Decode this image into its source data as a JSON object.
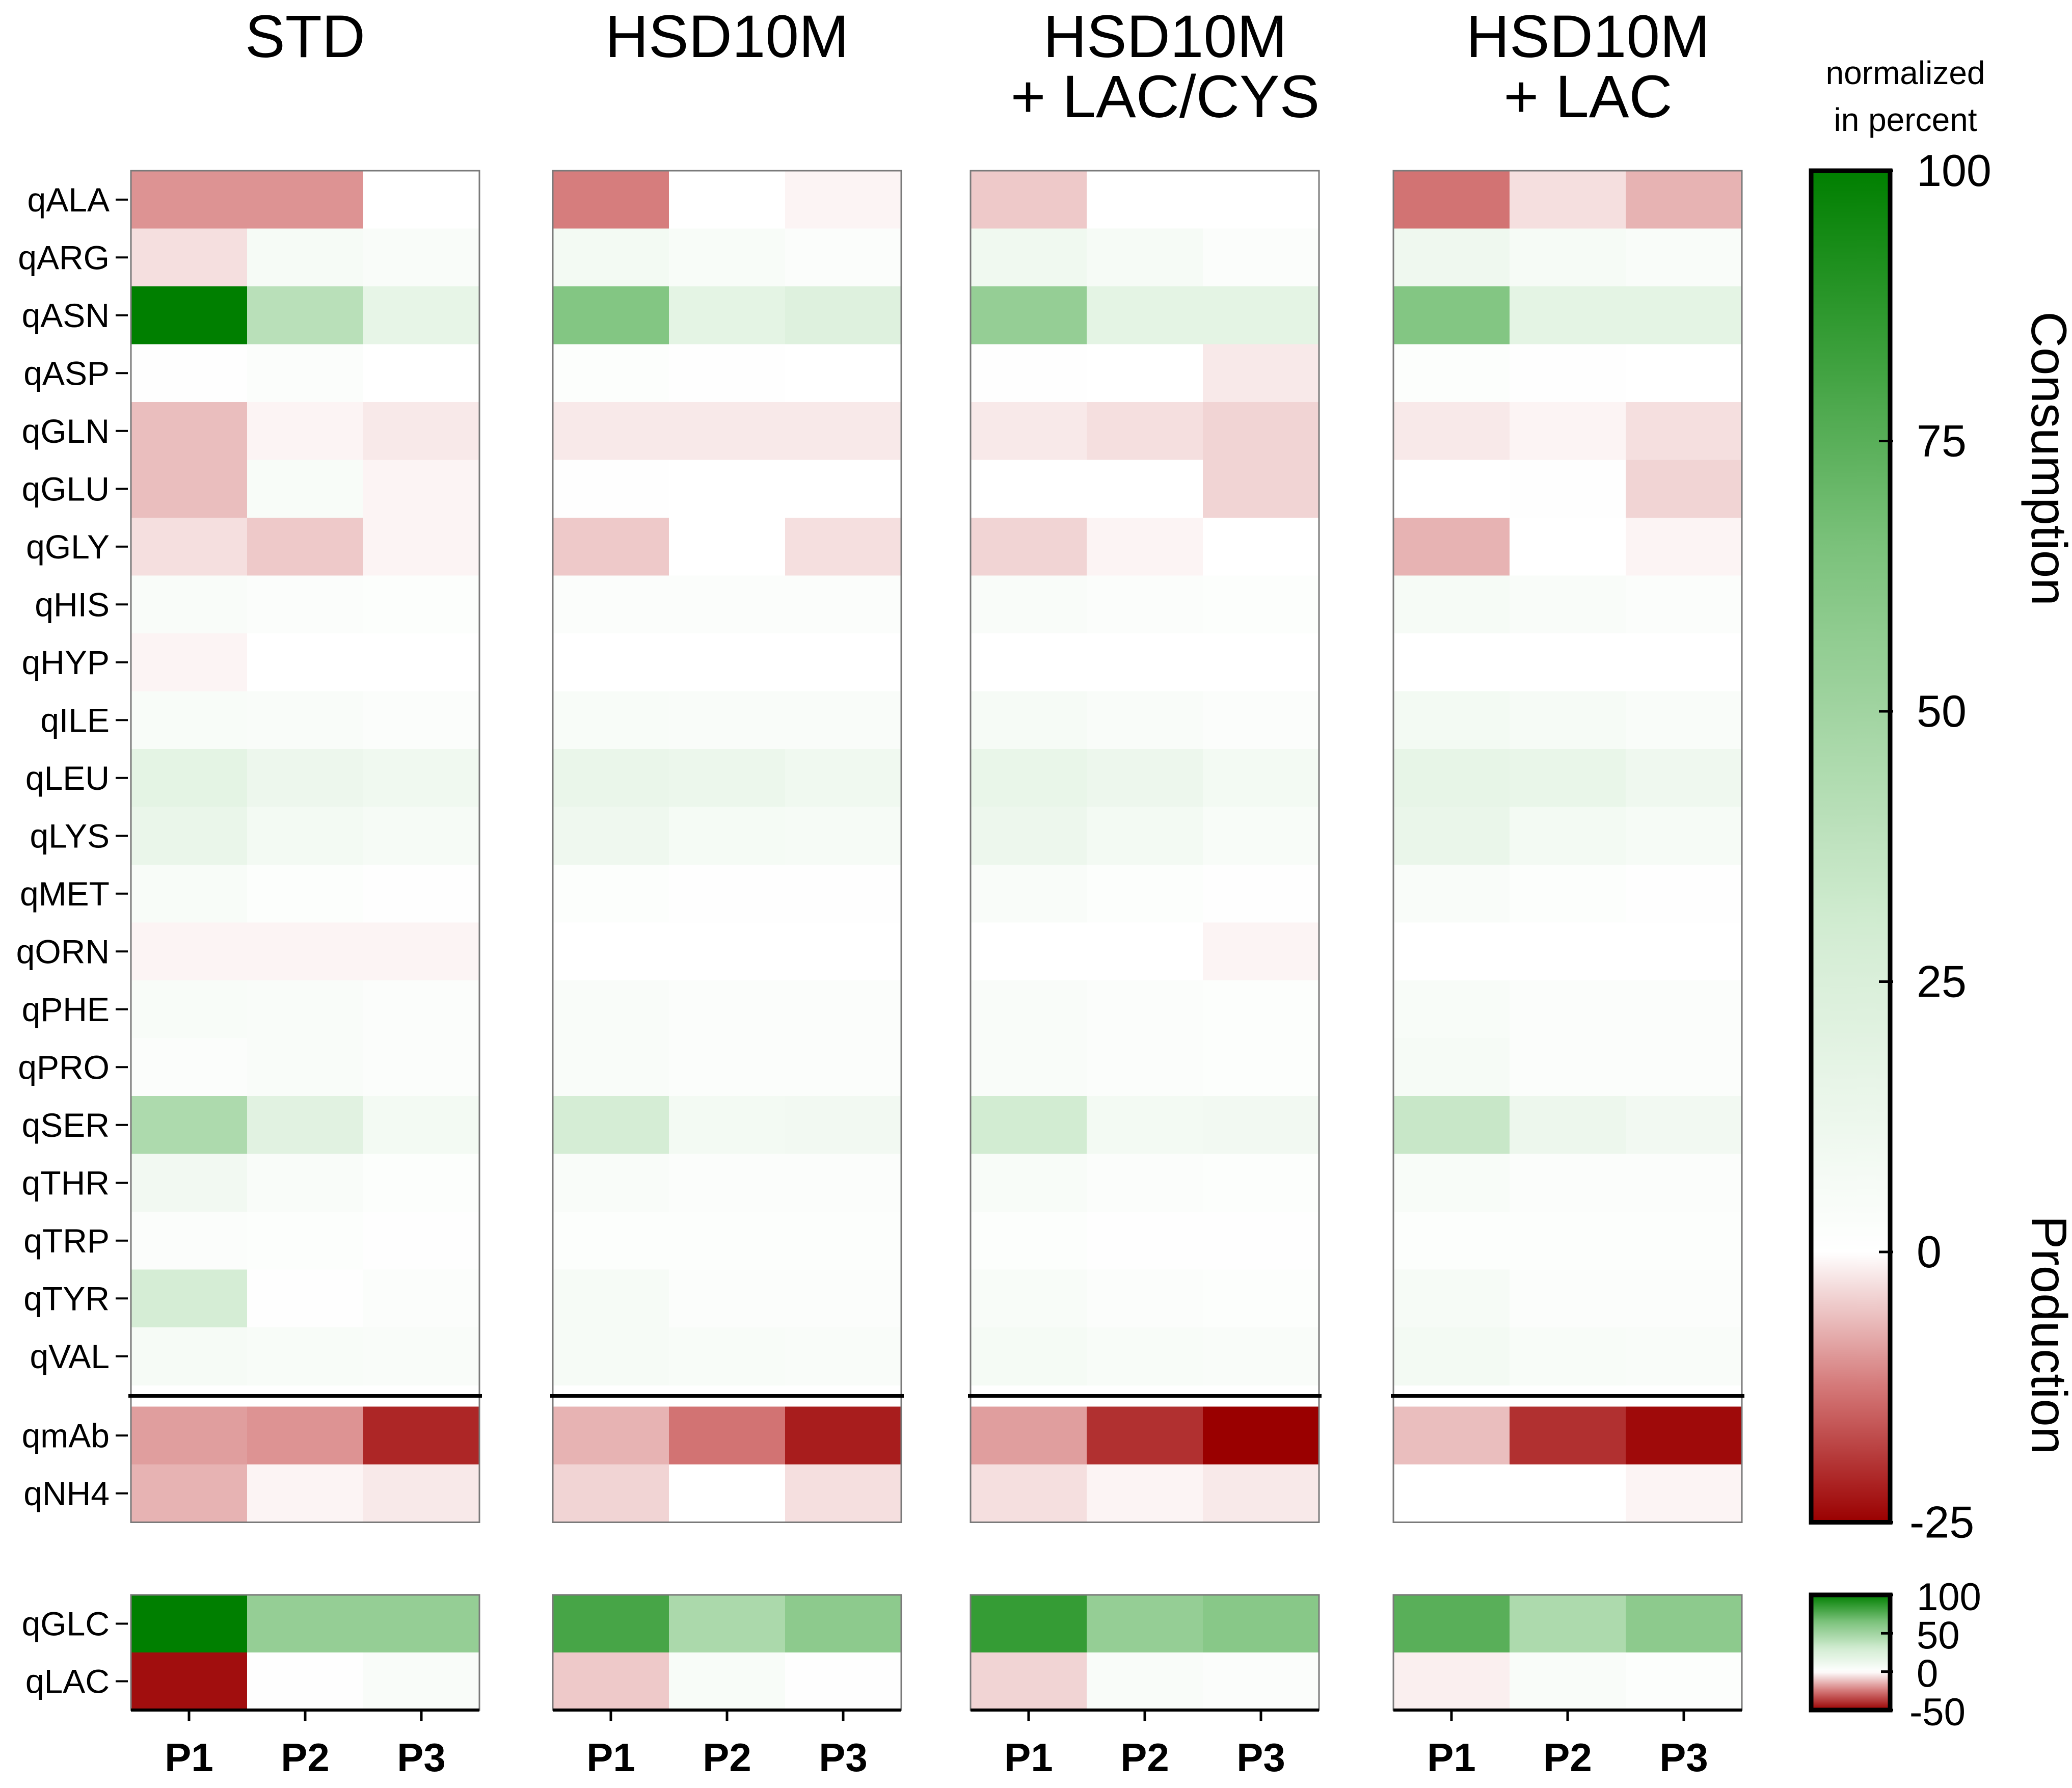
{
  "chart_data": {
    "type": "heatmap",
    "panels": [
      {
        "title_lines": [
          "STD"
        ]
      },
      {
        "title_lines": [
          "HSD10M"
        ]
      },
      {
        "title_lines": [
          "HSD10M",
          "+ LAC/CYS"
        ]
      },
      {
        "title_lines": [
          "HSD10M",
          "+ LAC"
        ]
      }
    ],
    "columns": [
      "P1",
      "P2",
      "P3"
    ],
    "colorbar_title": [
      "normalized",
      "in percent"
    ],
    "side_labels": {
      "top": "Consumption",
      "bottom": "Production"
    },
    "colorscale": [
      {
        "v": -1.0,
        "color": "#9a0000"
      },
      {
        "v": -0.5,
        "color": "#d47878"
      },
      {
        "v": 0.0,
        "color": "#ffffff"
      },
      {
        "v": 0.3,
        "color": "#d2ecd2"
      },
      {
        "v": 0.65,
        "color": "#7cc27c"
      },
      {
        "v": 1.0,
        "color": "#007f00"
      }
    ],
    "main": {
      "rows": [
        "qALA",
        "qARG",
        "qASN",
        "qASP",
        "qGLN",
        "qGLU",
        "qGLY",
        "qHIS",
        "qHYP",
        "qILE",
        "qLEU",
        "qLYS",
        "qMET",
        "qORN",
        "qPHE",
        "qPRO",
        "qSER",
        "qTHR",
        "qTRP",
        "qTYR",
        "qVAL"
      ],
      "separated_rows": [
        "qmAb",
        "qNH4"
      ],
      "colorbar": {
        "min": -25,
        "max": 100,
        "ticks": [
          100,
          75,
          50,
          25,
          0,
          -25
        ]
      },
      "values": [
        [
          [
            -10,
            -10,
            0
          ],
          [
            -3,
            6,
            4
          ],
          [
            100,
            40,
            16
          ],
          [
            1,
            3,
            0
          ],
          [
            -6,
            -1,
            -2
          ],
          [
            -6,
            5,
            -1
          ],
          [
            -3,
            -5,
            -1
          ],
          [
            4,
            3,
            2
          ],
          [
            -1,
            0,
            0
          ],
          [
            5,
            4,
            3
          ],
          [
            18,
            12,
            10
          ],
          [
            14,
            8,
            6
          ],
          [
            5,
            2,
            1
          ],
          [
            -1,
            -1,
            -1
          ],
          [
            5,
            4,
            3
          ],
          [
            3,
            4,
            3
          ],
          [
            45,
            20,
            8
          ],
          [
            9,
            4,
            2
          ],
          [
            3,
            2,
            1
          ],
          [
            28,
            1,
            3
          ],
          [
            6,
            5,
            4
          ]
        ],
        [
          [
            -12,
            0,
            -1
          ],
          [
            8,
            5,
            3
          ],
          [
            62,
            18,
            22
          ],
          [
            2,
            1,
            0
          ],
          [
            -2,
            -2,
            -2
          ],
          [
            1,
            0,
            0
          ],
          [
            -5,
            0,
            -3
          ],
          [
            3,
            3,
            3
          ],
          [
            0,
            0,
            0
          ],
          [
            5,
            4,
            4
          ],
          [
            14,
            13,
            10
          ],
          [
            11,
            7,
            6
          ],
          [
            2,
            1,
            1
          ],
          [
            0,
            0,
            0
          ],
          [
            4,
            3,
            3
          ],
          [
            4,
            3,
            3
          ],
          [
            28,
            8,
            9
          ],
          [
            4,
            3,
            3
          ],
          [
            2,
            2,
            2
          ],
          [
            6,
            3,
            3
          ],
          [
            6,
            5,
            4
          ]
        ],
        [
          [
            -5,
            0,
            0
          ],
          [
            10,
            6,
            3
          ],
          [
            55,
            18,
            18
          ],
          [
            1,
            0,
            -2
          ],
          [
            -2,
            -3,
            -4
          ],
          [
            0,
            0,
            -4
          ],
          [
            -4,
            -1,
            0
          ],
          [
            4,
            3,
            2
          ],
          [
            0,
            0,
            0
          ],
          [
            6,
            4,
            3
          ],
          [
            15,
            12,
            8
          ],
          [
            12,
            8,
            5
          ],
          [
            4,
            2,
            1
          ],
          [
            0,
            0,
            -1
          ],
          [
            4,
            3,
            2
          ],
          [
            4,
            3,
            2
          ],
          [
            30,
            8,
            9
          ],
          [
            5,
            3,
            2
          ],
          [
            2,
            1,
            1
          ],
          [
            5,
            3,
            2
          ],
          [
            7,
            5,
            4
          ]
        ],
        [
          [
            -13,
            -3,
            -7
          ],
          [
            11,
            6,
            4
          ],
          [
            62,
            18,
            18
          ],
          [
            2,
            1,
            0
          ],
          [
            -2,
            -1,
            -3
          ],
          [
            0,
            1,
            -4
          ],
          [
            -7,
            0,
            -1
          ],
          [
            6,
            4,
            3
          ],
          [
            0,
            0,
            0
          ],
          [
            8,
            6,
            4
          ],
          [
            16,
            15,
            11
          ],
          [
            14,
            8,
            6
          ],
          [
            4,
            2,
            1
          ],
          [
            0,
            0,
            0
          ],
          [
            5,
            3,
            3
          ],
          [
            6,
            3,
            3
          ],
          [
            34,
            12,
            9
          ],
          [
            5,
            3,
            3
          ],
          [
            2,
            2,
            2
          ],
          [
            6,
            3,
            3
          ],
          [
            8,
            5,
            4
          ]
        ]
      ],
      "sep_values": [
        [
          [
            -9,
            -10,
            -21
          ],
          [
            -7,
            -1,
            -2
          ]
        ],
        [
          [
            -7,
            -13,
            -22
          ],
          [
            -4,
            0,
            -3
          ]
        ],
        [
          [
            -9,
            -20,
            -25
          ],
          [
            -3,
            -1,
            -2
          ]
        ],
        [
          [
            -6,
            -20,
            -24
          ],
          [
            0,
            0,
            -1
          ]
        ]
      ]
    },
    "bottom": {
      "rows": [
        "qGLC",
        "qLAC"
      ],
      "colorbar": {
        "min": -50,
        "max": 100,
        "ticks": [
          100,
          50,
          0,
          -50
        ]
      },
      "values": [
        [
          [
            100,
            55,
            55
          ],
          [
            -47,
            1,
            4
          ]
        ],
        [
          [
            80,
            46,
            58
          ],
          [
            -10,
            5,
            1
          ]
        ],
        [
          [
            85,
            55,
            60
          ],
          [
            -8,
            4,
            3
          ]
        ],
        [
          [
            75,
            45,
            58
          ],
          [
            -3,
            4,
            2
          ]
        ]
      ]
    }
  }
}
